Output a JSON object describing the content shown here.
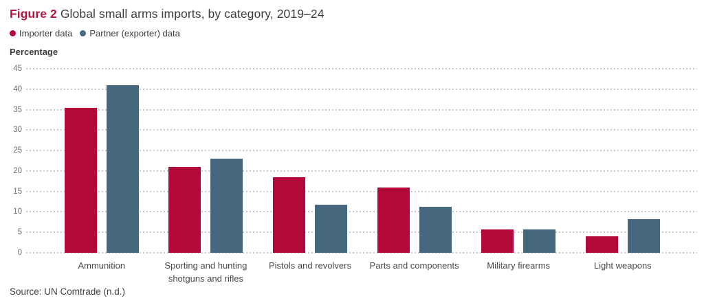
{
  "header": {
    "figure_label": "Figure 2",
    "title": "Global small arms imports, by category, 2019–24"
  },
  "legend": {
    "items": [
      {
        "label": "Importer data",
        "color": "#b30838"
      },
      {
        "label": "Partner (exporter) data",
        "color": "#46687f"
      }
    ]
  },
  "axis": {
    "unit_label": "Percentage"
  },
  "chart_data": {
    "type": "bar",
    "title": "Global small arms imports, by category, 2019–24",
    "xlabel": "",
    "ylabel": "Percentage",
    "ylim": [
      0,
      45
    ],
    "yticks": [
      0,
      5,
      10,
      15,
      20,
      25,
      30,
      35,
      40,
      45
    ],
    "grid": "horizontal-dotted",
    "legend_position": "top-left",
    "categories": [
      "Ammunition",
      "Sporting and hunting shotguns and rifles",
      "Pistols and revolvers",
      "Parts and components",
      "Military firearms",
      "Light weapons"
    ],
    "series": [
      {
        "name": "Importer data",
        "color": "#b30838",
        "values": [
          35.5,
          21,
          18.5,
          16,
          5.8,
          4
        ]
      },
      {
        "name": "Partner (exporter) data",
        "color": "#46687f",
        "values": [
          41,
          23,
          11.8,
          11.2,
          5.7,
          8.2
        ]
      }
    ]
  },
  "source": "Source: UN Comtrade (n.d.)"
}
